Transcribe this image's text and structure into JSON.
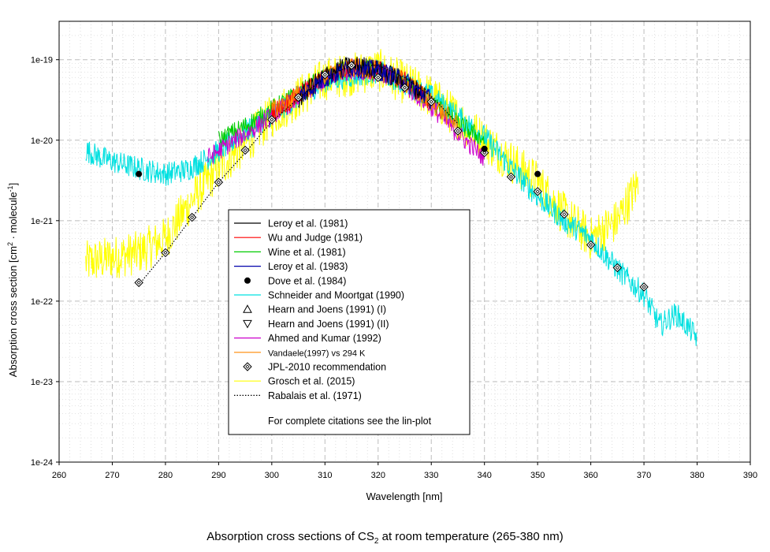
{
  "chart_data": {
    "type": "line",
    "title": "Absorption cross sections of CS",
    "title_subscript": "2",
    "title_suffix": " at room temperature (265-380 nm)",
    "xlabel": "Wavelength [nm]",
    "ylabel_main": "Absorption cross section [cm",
    "ylabel_sup1": "2",
    "ylabel_mid": " · molecule",
    "ylabel_sup2": "-1",
    "ylabel_end": "]",
    "xscale": "linear",
    "yscale": "log",
    "xlim": [
      260,
      390
    ],
    "ylim": [
      1e-24,
      3e-19
    ],
    "grid": true,
    "x_ticks": [
      260,
      270,
      280,
      290,
      300,
      310,
      320,
      330,
      340,
      350,
      360,
      370,
      380,
      390
    ],
    "x_tick_labels": [
      "260",
      "270",
      "280",
      "290",
      "300",
      "310",
      "320",
      "330",
      "340",
      "350",
      "360",
      "370",
      "380",
      "390"
    ],
    "y_ticks": [
      1e-24,
      1e-23,
      1e-22,
      1e-21,
      1e-20,
      1e-19
    ],
    "y_tick_labels": [
      "1e-24",
      "1e-23",
      "1e-22",
      "1e-21",
      "1e-20",
      "1e-19"
    ],
    "legend_position": "center",
    "legend_note": "For complete citations see the lin-plot",
    "series": [
      {
        "name": "Leroy et al. (1981)",
        "style": "line",
        "color": "#000000",
        "x": [
          305,
          308,
          311,
          314,
          317,
          320,
          323,
          326,
          329
        ],
        "y": [
          3.2e-20,
          5e-20,
          7e-20,
          8.2e-20,
          8.4e-20,
          7.5e-20,
          6.2e-20,
          4.8e-20,
          3.6e-20
        ]
      },
      {
        "name": "Wu and Judge (1981)",
        "style": "line",
        "color": "#ff0000",
        "x": [
          300,
          305,
          310,
          315,
          320,
          325,
          330
        ],
        "y": [
          2.2e-20,
          3.6e-20,
          6e-20,
          8e-20,
          7.5e-20,
          5.4e-20,
          3e-20
        ]
      },
      {
        "name": "Wine et al. (1981)",
        "style": "line",
        "color": "#00cc00",
        "x": [
          290,
          295,
          300,
          305,
          310,
          315,
          320,
          325,
          330,
          335,
          340
        ],
        "y": [
          1e-20,
          1.5e-20,
          2.4e-20,
          3.8e-20,
          6e-20,
          7.8e-20,
          7.2e-20,
          5.2e-20,
          3e-20,
          1.6e-20,
          1e-20
        ]
      },
      {
        "name": "Leroy et al. (1983)",
        "style": "line",
        "color": "#0000aa",
        "x": [
          305,
          310,
          315,
          320,
          325,
          330
        ],
        "y": [
          3.4e-20,
          5.8e-20,
          8e-20,
          7.4e-20,
          5.4e-20,
          3.2e-20
        ]
      },
      {
        "name": "Dove et al. (1984)",
        "style": "marker-filled-circle",
        "color": "#000000",
        "x": [
          275,
          340,
          350
        ],
        "y": [
          3.8e-21,
          7.8e-21,
          3.8e-21
        ]
      },
      {
        "name": "Schneider and Moortgat (1990)",
        "style": "line",
        "color": "#00e0e0",
        "x": [
          265,
          268,
          272,
          276,
          280,
          284,
          288,
          292,
          296,
          300,
          310,
          320,
          330,
          340,
          345,
          350,
          355,
          360,
          365,
          370,
          373,
          376,
          380
        ],
        "y": [
          7.5e-21,
          6e-21,
          5e-21,
          4.3e-21,
          3.8e-21,
          4.3e-21,
          6e-21,
          9e-21,
          1.4e-20,
          2.1e-20,
          5.5e-20,
          7.2e-20,
          3.5e-20,
          1.1e-20,
          4.5e-21,
          2e-21,
          1e-21,
          6e-22,
          2.5e-22,
          1.2e-22,
          5e-23,
          7e-23,
          3.5e-23
        ]
      },
      {
        "name": "Hearn and Joens (1991) (I)",
        "style": "marker-triangle-up",
        "color": "#000000",
        "x": [],
        "y": []
      },
      {
        "name": "Hearn and Joens (1991) (II)",
        "style": "marker-triangle-down",
        "color": "#000000",
        "x": [],
        "y": []
      },
      {
        "name": "Ahmed and Kumar (1992)",
        "style": "line",
        "color": "#cc00cc",
        "x": [
          288,
          292,
          296,
          300,
          305,
          310,
          315,
          320,
          325,
          330,
          335,
          340
        ],
        "y": [
          6e-21,
          9e-21,
          1.3e-20,
          2e-20,
          3.4e-20,
          5.6e-20,
          7.6e-20,
          7e-20,
          4.8e-20,
          2.6e-20,
          1.2e-20,
          6e-21
        ]
      },
      {
        "name": "Vandaele(1997) vs 294 K",
        "style": "line",
        "color": "#ff8800",
        "x": [
          300,
          305,
          310,
          315,
          320,
          325,
          330,
          335
        ],
        "y": [
          2.3e-20,
          3.7e-20,
          6e-20,
          7.9e-20,
          7.4e-20,
          5.3e-20,
          3e-20,
          1.5e-20
        ]
      },
      {
        "name": "JPL-2010 recommendation",
        "style": "marker-diamond",
        "color": "#000000",
        "x": [
          275,
          280,
          285,
          290,
          295,
          300,
          305,
          310,
          315,
          320,
          325,
          330,
          335,
          340,
          345,
          350,
          355,
          360,
          365,
          370
        ],
        "y": [
          1.7e-22,
          4e-22,
          1.1e-21,
          3e-21,
          7.5e-21,
          1.8e-20,
          3.4e-20,
          6.5e-20,
          8.5e-20,
          6e-20,
          4.5e-20,
          3e-20,
          1.3e-20,
          7e-21,
          3.5e-21,
          2.3e-21,
          1.2e-21,
          5e-22,
          2.6e-22,
          1.5e-22
        ]
      },
      {
        "name": "Grosch et al. (2015)",
        "style": "line",
        "color": "#ffff00",
        "x": [
          265,
          270,
          275,
          280,
          285,
          290,
          295,
          300,
          310,
          320,
          330,
          340,
          350,
          355,
          360,
          365,
          369
        ],
        "y": [
          3e-22,
          3.5e-22,
          4e-22,
          6e-22,
          1.8e-21,
          4.5e-21,
          9e-21,
          2e-20,
          5.8e-20,
          7.5e-20,
          3.5e-20,
          1e-20,
          3e-21,
          1.2e-21,
          6e-22,
          1e-21,
          3e-21
        ]
      },
      {
        "name": "Rabalais et al. (1971)",
        "style": "dotted",
        "color": "#000000",
        "x": [
          275,
          280,
          285,
          290,
          295,
          300,
          305,
          310,
          315,
          320,
          325,
          330,
          335
        ],
        "y": [
          1.6e-22,
          4e-22,
          1.1e-21,
          3e-21,
          7e-21,
          1.7e-20,
          3.3e-20,
          6e-20,
          8.5e-20,
          8.5e-20,
          6e-20,
          3.5e-20,
          1.6e-20
        ]
      }
    ]
  }
}
